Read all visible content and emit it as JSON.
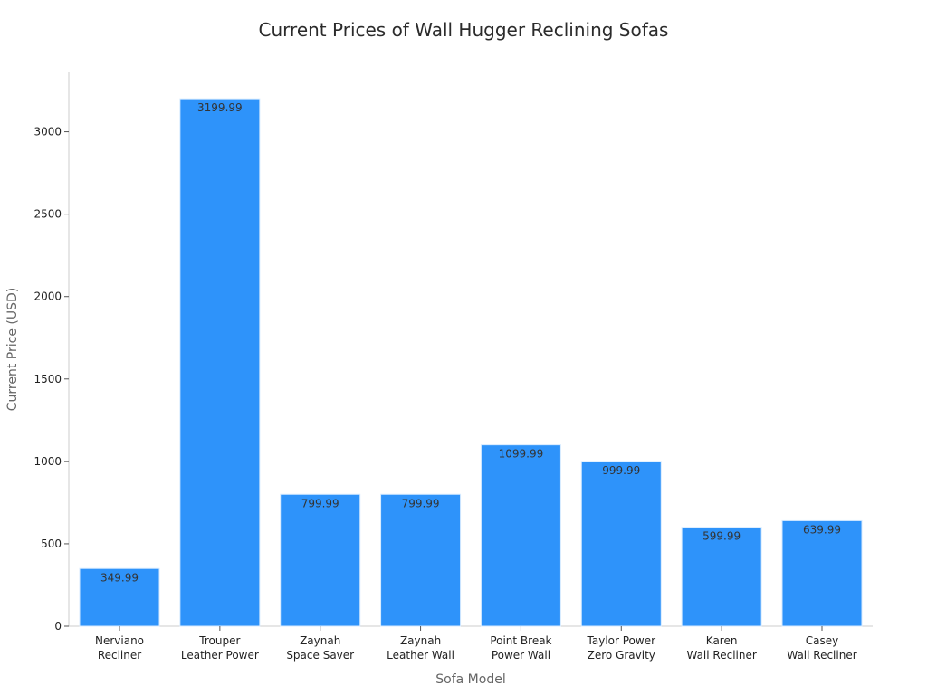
{
  "chart_data": {
    "type": "bar",
    "title": "Current Prices of Wall Hugger Reclining Sofas",
    "xlabel": "Sofa Model",
    "ylabel": "Current Price (USD)",
    "categories": [
      [
        "Nerviano",
        "Recliner"
      ],
      [
        "Trouper",
        "Leather Power"
      ],
      [
        "Zaynah",
        "Space Saver"
      ],
      [
        "Zaynah",
        "Leather Wall"
      ],
      [
        "Point Break",
        "Power Wall"
      ],
      [
        "Taylor Power",
        "Zero Gravity"
      ],
      [
        "Karen",
        "Wall Recliner"
      ],
      [
        "Casey",
        "Wall Recliner"
      ]
    ],
    "values": [
      349.99,
      3199.99,
      799.99,
      799.99,
      1099.99,
      999.99,
      599.99,
      639.99
    ],
    "data_labels": [
      "349.99",
      "3199.99",
      "799.99",
      "799.99",
      "1099.99",
      "999.99",
      "599.99",
      "639.99"
    ],
    "yticks": [
      0,
      500,
      1000,
      1500,
      2000,
      2500,
      3000
    ],
    "ylim": [
      0,
      3360
    ],
    "grid": false,
    "legend": "none",
    "bar_color": "#2e93fa"
  }
}
